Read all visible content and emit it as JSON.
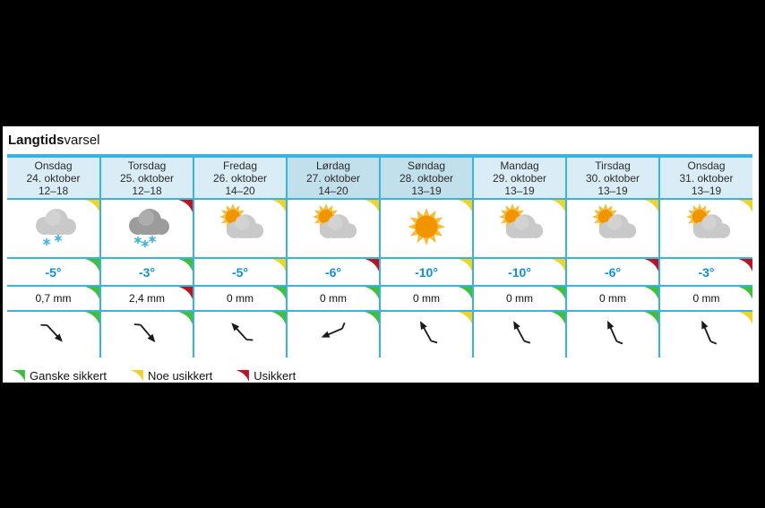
{
  "title": {
    "bold": "Langtids",
    "rest": "varsel"
  },
  "colors": {
    "accent": "#3ab4de",
    "header_bg": "#daedf6",
    "weekend_bg": "#c2dfec",
    "temp_color": "#0e90d2",
    "green": "#3fbf3f",
    "yellow": "#eed32b",
    "red": "#bd1220",
    "cloud_light": "#c9c9c9",
    "cloud_dark": "#9c9c9c",
    "snow": "#45b5d8",
    "sun_core": "#f29400",
    "sun_rays": "#f8bc3a",
    "wind_arrow": "#1a1a1a"
  },
  "days": [
    {
      "name": "Onsdag",
      "date": "24. oktober",
      "time": "12–18",
      "weekend": false,
      "icon": "snow-cloud-light",
      "icon_cert": "yellow",
      "temp": "-5°",
      "temp_cert": "green",
      "precip": "0,7 mm",
      "precip_cert": "green",
      "wind_deg": 137,
      "wind_cert": "green"
    },
    {
      "name": "Torsdag",
      "date": "25. oktober",
      "time": "12–18",
      "weekend": false,
      "icon": "snow-cloud-dark",
      "icon_cert": "red",
      "temp": "-3°",
      "temp_cert": "green",
      "precip": "2,4 mm",
      "precip_cert": "red",
      "wind_deg": 140,
      "wind_cert": "green"
    },
    {
      "name": "Fredag",
      "date": "26. oktober",
      "time": "14–20",
      "weekend": false,
      "icon": "sun-cloud",
      "icon_cert": "yellow",
      "temp": "-5°",
      "temp_cert": "yellow",
      "precip": "0 mm",
      "precip_cert": "green",
      "wind_deg": 318,
      "wind_cert": "green"
    },
    {
      "name": "Lørdag",
      "date": "27. oktober",
      "time": "14–20",
      "weekend": true,
      "icon": "sun-cloud",
      "icon_cert": "yellow",
      "temp": "-6°",
      "temp_cert": "red",
      "precip": "0 mm",
      "precip_cert": "green",
      "wind_deg": 247,
      "wind_cert": "green"
    },
    {
      "name": "Søndag",
      "date": "28. oktober",
      "time": "13–19",
      "weekend": true,
      "icon": "sun",
      "icon_cert": "yellow",
      "temp": "-10°",
      "temp_cert": "yellow",
      "precip": "0 mm",
      "precip_cert": "green",
      "wind_deg": 331,
      "wind_cert": "yellow"
    },
    {
      "name": "Mandag",
      "date": "29. oktober",
      "time": "13–19",
      "weekend": false,
      "icon": "sun-cloud",
      "icon_cert": "yellow",
      "temp": "-10°",
      "temp_cert": "yellow",
      "precip": "0 mm",
      "precip_cert": "green",
      "wind_deg": 332,
      "wind_cert": "green"
    },
    {
      "name": "Tirsdag",
      "date": "30. oktober",
      "time": "13–19",
      "weekend": false,
      "icon": "sun-cloud",
      "icon_cert": "yellow",
      "temp": "-6°",
      "temp_cert": "red",
      "precip": "0 mm",
      "precip_cert": "green",
      "wind_deg": 336,
      "wind_cert": "green"
    },
    {
      "name": "Onsdag",
      "date": "31. oktober",
      "time": "13–19",
      "weekend": false,
      "icon": "sun-cloud",
      "icon_cert": "yellow",
      "temp": "-3°",
      "temp_cert": "red",
      "precip": "0 mm",
      "precip_cert": "green",
      "wind_deg": 337,
      "wind_cert": "yellow"
    }
  ],
  "legend": [
    {
      "cert": "green",
      "label": "Ganske sikkert"
    },
    {
      "cert": "yellow",
      "label": "Noe usikkert"
    },
    {
      "cert": "red",
      "label": "Usikkert"
    }
  ]
}
